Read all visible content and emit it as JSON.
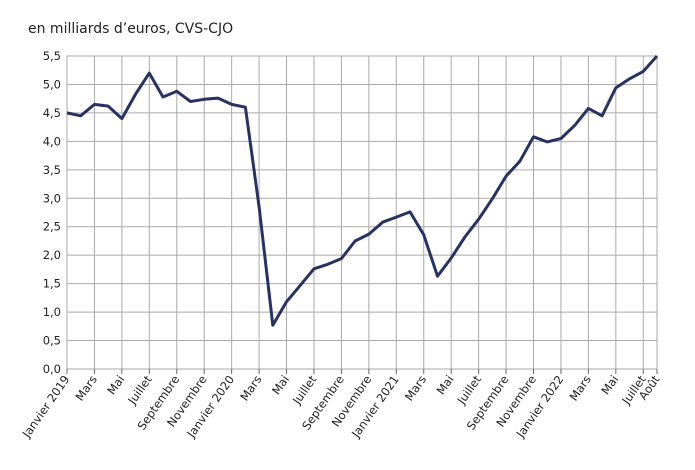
{
  "chart_data": {
    "type": "line",
    "title": "en milliards d’euros, CVS-CJO",
    "categories": [
      "Janvier 2019",
      null,
      "Mars",
      null,
      "Mai",
      null,
      "Juillet",
      null,
      "Septembre",
      null,
      "Novembre",
      null,
      "Janvier 2020",
      null,
      "Mars",
      null,
      "Mai",
      null,
      "Juillet",
      null,
      "Septembre",
      null,
      "Novembre",
      null,
      "Janvier 2021",
      null,
      "Mars",
      null,
      "Mai",
      null,
      "Juillet",
      null,
      "Septembre",
      null,
      "Novembre",
      null,
      "Janvier 2022",
      null,
      "Mars",
      null,
      "Mai",
      null,
      "Juillet",
      "Août"
    ],
    "values": [
      4.5,
      4.45,
      4.65,
      4.62,
      4.4,
      4.83,
      5.2,
      4.78,
      4.88,
      4.7,
      4.74,
      4.76,
      4.65,
      4.6,
      2.85,
      0.77,
      1.18,
      1.47,
      1.76,
      1.84,
      1.94,
      2.25,
      2.37,
      2.58,
      2.67,
      2.76,
      2.36,
      1.63,
      1.95,
      2.32,
      2.63,
      2.99,
      3.39,
      3.65,
      4.08,
      3.99,
      4.05,
      4.28,
      4.58,
      4.45,
      4.94,
      5.1,
      5.23,
      5.5
    ],
    "color": "#283163",
    "ylim": [
      0,
      5.5
    ],
    "yticks": [
      {
        "value": 0,
        "label": "0,0"
      },
      {
        "value": 0.5,
        "label": "0,5"
      },
      {
        "value": 1,
        "label": "1,0"
      },
      {
        "value": 1.5,
        "label": "1,5"
      },
      {
        "value": 2,
        "label": "2,0"
      },
      {
        "value": 2.5,
        "label": "2,5"
      },
      {
        "value": 3,
        "label": "3,0"
      },
      {
        "value": 3.5,
        "label": "3,5"
      },
      {
        "value": 4,
        "label": "4,0"
      },
      {
        "value": 4.5,
        "label": "4,5"
      },
      {
        "value": 5,
        "label": "5,0"
      },
      {
        "value": 5.5,
        "label": "5,5"
      }
    ],
    "grid": true
  }
}
